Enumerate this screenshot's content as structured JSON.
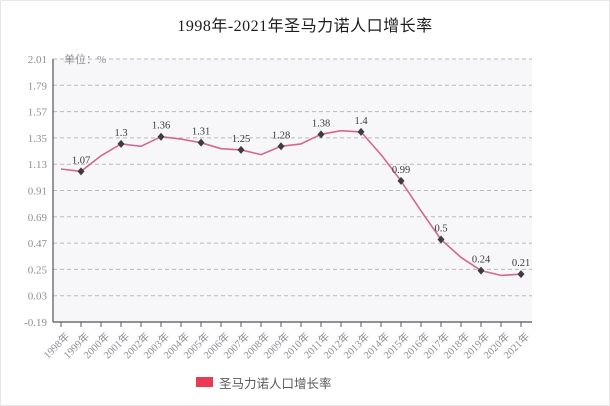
{
  "title": "1998年-2021年圣马力诺人口增长率",
  "unit_label": "单位：%",
  "legend": {
    "label": "圣马力诺人口增长率",
    "swatch_color": "#e83a52"
  },
  "colors": {
    "line": "#d4688a",
    "marker": "#3c3c42",
    "gridline": "#b9b9bd",
    "axis": "#55555a",
    "tick_label": "#8f8f94",
    "point_label": "#3a3a3a",
    "plot_background": "#f7f7fa"
  },
  "chart_data": {
    "type": "line",
    "title": "1998年-2021年圣马力诺人口增长率",
    "unit": "%",
    "x_categories": [
      "1998年",
      "1999年",
      "2000年",
      "2001年",
      "2002年",
      "2003年",
      "2004年",
      "2005年",
      "2006年",
      "2007年",
      "2008年",
      "2009年",
      "2010年",
      "2011年",
      "2012年",
      "2013年",
      "2014年",
      "2015年",
      "2016年",
      "2017年",
      "2018年",
      "2019年",
      "2020年",
      "2021年"
    ],
    "series": [
      {
        "name": "圣马力诺人口增长率",
        "values": [
          1.09,
          1.07,
          1.2,
          1.3,
          1.28,
          1.36,
          1.34,
          1.31,
          1.26,
          1.25,
          1.21,
          1.28,
          1.3,
          1.38,
          1.41,
          1.4,
          1.21,
          0.99,
          0.74,
          0.5,
          0.35,
          0.24,
          0.2,
          0.21
        ]
      }
    ],
    "point_labels": [
      "",
      "1.07",
      "",
      "1.3",
      "",
      "1.36",
      "",
      "1.31",
      "",
      "1.25",
      "",
      "1.28",
      "",
      "1.38",
      "",
      "1.4",
      "",
      "0.99",
      "",
      "0.5",
      "",
      "0.24",
      "",
      "0.21"
    ],
    "y_ticks": [
      "2.01",
      "1.79",
      "1.57",
      "1.35",
      "1.13",
      "0.91",
      "0.69",
      "0.47",
      "0.25",
      "0.03",
      "-0.19"
    ],
    "ylim": [
      -0.19,
      2.01
    ],
    "grid": "horizontal-dashed",
    "legend_position": "bottom-center"
  }
}
